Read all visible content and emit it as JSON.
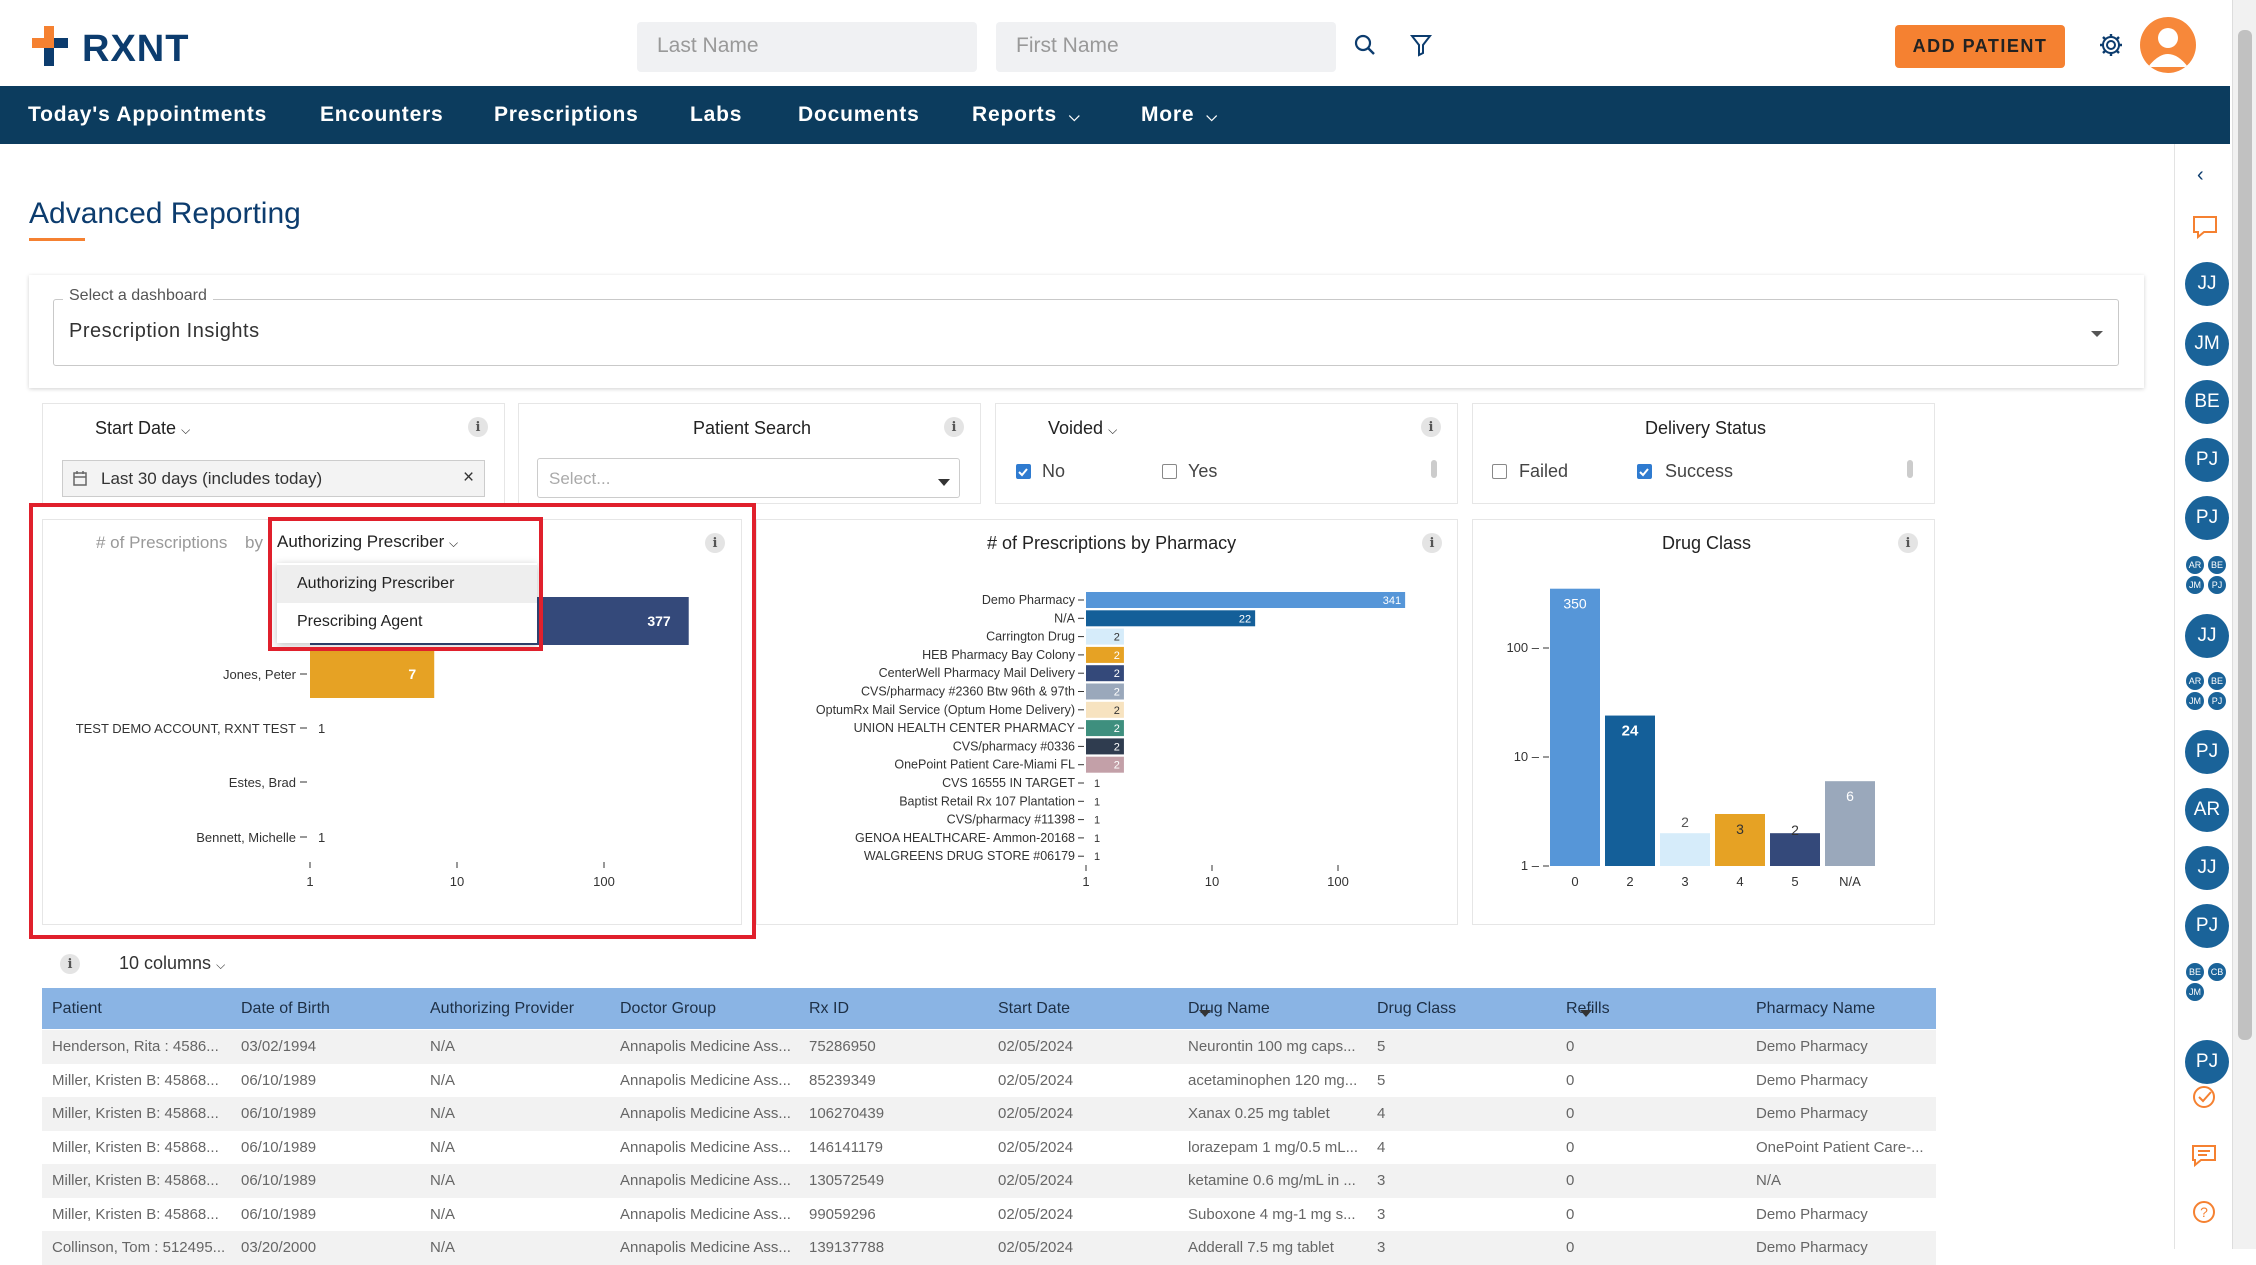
{
  "app": {
    "logo_text": "RXNT",
    "brand_color": "#f58131",
    "nav_color": "#0c3c5e"
  },
  "header": {
    "last_name_placeholder": "Last Name",
    "first_name_placeholder": "First Name",
    "add_patient_label": "ADD PATIENT"
  },
  "nav": {
    "items": [
      {
        "label": "Today's Appointments"
      },
      {
        "label": "Encounters"
      },
      {
        "label": "Prescriptions"
      },
      {
        "label": "Labs"
      },
      {
        "label": "Documents"
      },
      {
        "label": "Reports"
      },
      {
        "label": "More"
      }
    ]
  },
  "page": {
    "title": "Advanced Reporting",
    "dashboard_label": "Select a dashboard",
    "dashboard_value": "Prescription Insights"
  },
  "filters": {
    "start_date": {
      "title": "Start Date",
      "value": "Last 30 days (includes today)",
      "clear": "×"
    },
    "patient_search": {
      "title": "Patient Search",
      "placeholder": "Select..."
    },
    "voided": {
      "title": "Voided",
      "options": [
        {
          "label": "No",
          "checked": true
        },
        {
          "label": "Yes",
          "checked": false
        }
      ]
    },
    "delivery_status": {
      "title": "Delivery Status",
      "options": [
        {
          "label": "Failed",
          "checked": false
        },
        {
          "label": "Success",
          "checked": true
        }
      ]
    }
  },
  "chart_prescriber": {
    "title_prefix": "# of Prescriptions",
    "by": "by",
    "group_by": "Authorizing Prescriber",
    "menu": [
      "Authorizing Prescriber",
      "Prescribing Agent"
    ]
  },
  "chart_pharmacy": {
    "title": "# of Prescriptions by Pharmacy"
  },
  "chart_drugclass": {
    "title": "Drug Class"
  },
  "chart_data": [
    {
      "type": "bar",
      "orientation": "horizontal",
      "scale": "log",
      "categories": [
        "",
        "Jones, Peter",
        "TEST DEMO ACCOUNT, RXNT TEST",
        "Estes, Brad",
        "Bennett, Michelle"
      ],
      "values": [
        377,
        7,
        1,
        null,
        1
      ],
      "colors": [
        "#34497a",
        "#e6a224",
        "#34497a",
        "#34497a",
        "#34497a"
      ],
      "xticks": [
        "1",
        "10",
        "100"
      ]
    },
    {
      "type": "bar",
      "orientation": "horizontal",
      "scale": "log",
      "categories": [
        "Demo Pharmacy",
        "N/A",
        "Carrington Drug",
        "HEB Pharmacy Bay Colony",
        "CenterWell Pharmacy Mail Delivery",
        "CVS/pharmacy #2360 Btw 96th & 97th",
        "OptumRx Mail Service (Optum Home Delivery)",
        "UNION HEALTH CENTER PHARMACY",
        "CVS/pharmacy #0336",
        "OnePoint Patient Care-Miami FL",
        "CVS 16555 IN TARGET",
        "Baptist Retail Rx 107 Plantation",
        "CVS/pharmacy #11398",
        "GENOA HEALTHCARE- Ammon-20168",
        "WALGREENS DRUG STORE #06179"
      ],
      "values": [
        341,
        22,
        2,
        2,
        2,
        2,
        2,
        2,
        2,
        2,
        1,
        1,
        1,
        1,
        1
      ],
      "colors": [
        "#5696d8",
        "#145f99",
        "#d6ecfa",
        "#e6a224",
        "#34497a",
        "#9aa8bb",
        "#f7e3c0",
        "#3e8f7e",
        "#2f3c4f",
        "#c3a0a8",
        "#5696d8",
        "#145f99",
        "#d6ecfa",
        "#e6a224",
        "#34497a"
      ],
      "xticks": [
        "1",
        "10",
        "100"
      ]
    },
    {
      "type": "bar",
      "scale": "log",
      "categories": [
        "0",
        "2",
        "3",
        "4",
        "5",
        "N/A"
      ],
      "values": [
        350,
        24,
        2,
        3,
        2,
        6
      ],
      "colors": [
        "#5696d8",
        "#145f99",
        "#d6ecfa",
        "#e6a224",
        "#34497a",
        "#9aa8bb"
      ],
      "yticks": [
        "1",
        "10",
        "100"
      ]
    }
  ],
  "table": {
    "columns_label": "10 columns",
    "headers": [
      "Patient",
      "Date of Birth",
      "Authorizing Provider",
      "Doctor Group",
      "Rx ID",
      "Start Date",
      "Drug Name",
      "Drug Class",
      "Refills",
      "Pharmacy Name"
    ],
    "rows": [
      [
        "Henderson, Rita : 4586...",
        "03/02/1994",
        "N/A",
        "Annapolis Medicine Ass...",
        "75286950",
        "02/05/2024",
        "Neurontin 100 mg caps...",
        "5",
        "0",
        "Demo Pharmacy"
      ],
      [
        "Miller, Kristen B: 45868...",
        "06/10/1989",
        "N/A",
        "Annapolis Medicine Ass...",
        "85239349",
        "02/05/2024",
        "acetaminophen 120 mg...",
        "5",
        "0",
        "Demo Pharmacy"
      ],
      [
        "Miller, Kristen B: 45868...",
        "06/10/1989",
        "N/A",
        "Annapolis Medicine Ass...",
        "106270439",
        "02/05/2024",
        "Xanax 0.25 mg tablet",
        "4",
        "0",
        "Demo Pharmacy"
      ],
      [
        "Miller, Kristen B: 45868...",
        "06/10/1989",
        "N/A",
        "Annapolis Medicine Ass...",
        "146141179",
        "02/05/2024",
        "lorazepam 1 mg/0.5 mL...",
        "4",
        "0",
        "OnePoint Patient Care-..."
      ],
      [
        "Miller, Kristen B: 45868...",
        "06/10/1989",
        "N/A",
        "Annapolis Medicine Ass...",
        "130572549",
        "02/05/2024",
        "ketamine 0.6 mg/mL in ...",
        "3",
        "0",
        "N/A"
      ],
      [
        "Miller, Kristen B: 45868...",
        "06/10/1989",
        "N/A",
        "Annapolis Medicine Ass...",
        "99059296",
        "02/05/2024",
        "Suboxone 4 mg-1 mg s...",
        "3",
        "0",
        "Demo Pharmacy"
      ],
      [
        "Collinson, Tom : 512495...",
        "03/20/2000",
        "N/A",
        "Annapolis Medicine Ass...",
        "139137788",
        "02/05/2024",
        "Adderall 7.5 mg tablet",
        "3",
        "0",
        "Demo Pharmacy"
      ]
    ]
  },
  "rail": {
    "avatars": [
      "JJ",
      "JM",
      "BE",
      "PJ",
      "PJ",
      "JJ",
      "PJ",
      "AR",
      "JJ",
      "PJ",
      "PJ"
    ],
    "group1": [
      "AR",
      "BE",
      "JM",
      "PJ"
    ],
    "group2": [
      "AR",
      "BE",
      "JM",
      "PJ"
    ],
    "group3": [
      "BE",
      "CB",
      "JM"
    ]
  }
}
